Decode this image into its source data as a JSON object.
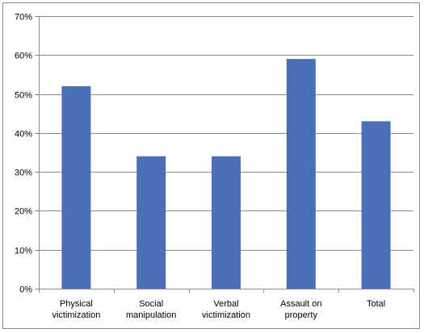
{
  "chart_data": {
    "type": "bar",
    "title": "",
    "xlabel": "",
    "ylabel": "",
    "categories": [
      [
        "Physical",
        "victimization"
      ],
      [
        "Social",
        "manipulation"
      ],
      [
        "Verbal",
        "victimization"
      ],
      [
        "Assault on",
        "property"
      ],
      [
        "Total"
      ]
    ],
    "values": [
      0.52,
      0.34,
      0.34,
      0.59,
      0.43
    ],
    "ylim": [
      0,
      0.7
    ],
    "yticks": [
      {
        "value": 0.0,
        "label": "0%"
      },
      {
        "value": 0.1,
        "label": "10%"
      },
      {
        "value": 0.2,
        "label": "20%"
      },
      {
        "value": 0.3,
        "label": "30%"
      },
      {
        "value": 0.4,
        "label": "40%"
      },
      {
        "value": 0.5,
        "label": "50%"
      },
      {
        "value": 0.6,
        "label": "60%"
      },
      {
        "value": 0.7,
        "label": "70%"
      }
    ],
    "grid": true,
    "legend": "none",
    "bar_color": "#4a6fb7",
    "grid_color": "#8c8c8c",
    "axis_color": "#8c8c8c"
  }
}
